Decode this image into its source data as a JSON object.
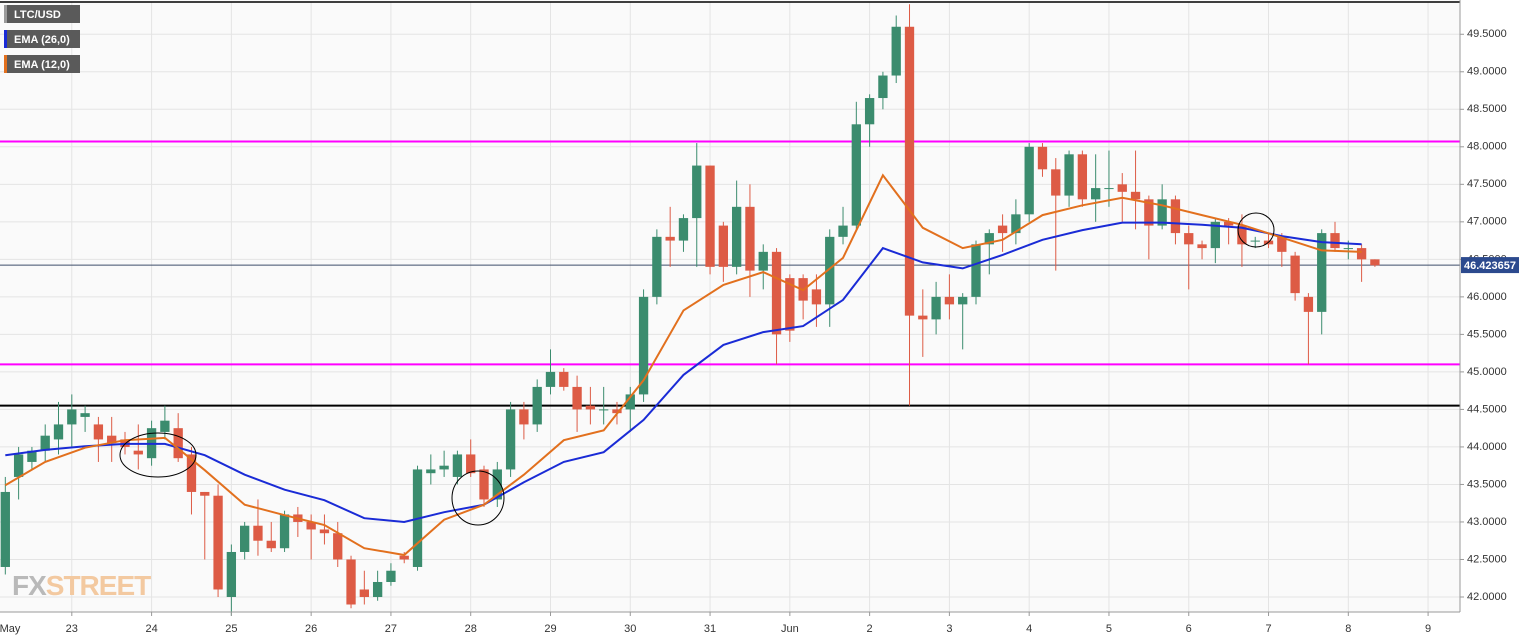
{
  "chart_data": {
    "type": "candlestick",
    "title": "LTC/USD",
    "x": [
      1,
      2,
      3,
      4,
      5,
      6,
      7,
      8,
      9,
      10,
      11,
      12,
      13,
      14,
      15,
      16,
      17,
      18,
      19,
      20,
      21,
      22,
      23,
      24,
      25,
      26,
      27,
      28,
      29,
      30,
      31,
      32,
      33,
      34,
      35,
      36,
      37,
      38,
      39,
      40,
      41,
      42,
      43,
      44,
      45,
      46,
      47,
      48,
      49,
      50,
      51,
      52,
      53,
      54,
      55,
      56,
      57,
      58,
      59,
      60,
      61,
      62,
      63,
      64,
      65,
      66,
      67,
      68,
      69,
      70,
      71,
      72,
      73,
      74,
      75,
      76,
      77,
      78,
      79,
      80,
      81,
      82,
      83,
      84,
      85,
      86,
      87,
      88,
      89,
      90,
      91,
      92,
      93,
      94,
      95,
      96,
      97,
      98,
      99,
      100,
      101,
      102,
      103,
      104
    ],
    "open": [
      42.4,
      43.6,
      43.8,
      43.95,
      44.1,
      44.3,
      44.4,
      44.3,
      44.15,
      44.1,
      43.95,
      43.85,
      44.2,
      44.25,
      43.9,
      43.4,
      43.35,
      42.0,
      42.6,
      42.95,
      42.75,
      42.65,
      43.1,
      43.0,
      42.9,
      42.85,
      42.5,
      42.1,
      42.0,
      42.2,
      42.55,
      42.4,
      43.65,
      43.7,
      43.6,
      43.9,
      43.7,
      43.3,
      43.7,
      44.5,
      44.3,
      44.8,
      45.0,
      44.8,
      44.55,
      44.5,
      44.5,
      44.5,
      44.7,
      46.0,
      46.8,
      46.75,
      47.05,
      47.75,
      46.95,
      46.4,
      47.2,
      46.35,
      46.6,
      46.25,
      46.25,
      46.1,
      45.9,
      46.8,
      46.95,
      48.3,
      48.65,
      48.95,
      49.6,
      45.75,
      45.7,
      46.0,
      45.9,
      46.0,
      46.7,
      46.95,
      46.85,
      47.1,
      48.0,
      47.7,
      47.35,
      47.9,
      47.3,
      47.45,
      47.5,
      47.4,
      47.3,
      46.95,
      47.3,
      46.85,
      46.7,
      46.65,
      47.0,
      46.95,
      46.75,
      46.75,
      46.8,
      46.55,
      46.0,
      45.8,
      46.85,
      46.65,
      46.65,
      46.5
    ],
    "high": [
      43.6,
      44.0,
      44.0,
      44.3,
      44.6,
      44.7,
      44.55,
      44.4,
      44.4,
      44.2,
      44.3,
      44.35,
      44.55,
      44.45,
      44.0,
      43.4,
      43.5,
      42.7,
      43.0,
      43.3,
      43.0,
      43.15,
      43.2,
      43.1,
      43.1,
      43.0,
      42.55,
      42.35,
      42.35,
      42.45,
      42.6,
      43.75,
      43.9,
      43.95,
      43.95,
      44.1,
      43.75,
      43.8,
      44.6,
      44.6,
      44.9,
      45.3,
      45.05,
      44.95,
      44.8,
      44.8,
      44.6,
      44.8,
      46.1,
      46.9,
      47.2,
      47.1,
      48.05,
      47.75,
      47.0,
      47.55,
      47.5,
      46.7,
      46.65,
      46.3,
      46.3,
      46.3,
      46.9,
      47.2,
      48.6,
      48.7,
      49.0,
      49.75,
      49.9,
      46.1,
      46.2,
      46.3,
      46.05,
      46.75,
      46.9,
      47.1,
      47.3,
      48.05,
      48.05,
      47.85,
      47.95,
      47.95,
      47.9,
      47.95,
      47.65,
      47.95,
      47.35,
      47.5,
      47.35,
      46.95,
      46.75,
      47.05,
      47.05,
      47.1,
      46.8,
      46.85,
      46.85,
      46.6,
      46.05,
      46.9,
      47.0,
      46.75,
      46.7,
      46.5
    ],
    "low": [
      42.3,
      43.3,
      43.7,
      43.8,
      43.9,
      44.0,
      44.2,
      43.8,
      43.8,
      43.9,
      43.7,
      43.75,
      44.1,
      43.8,
      43.1,
      42.5,
      42.0,
      41.75,
      42.5,
      42.55,
      42.6,
      42.6,
      42.8,
      42.5,
      42.7,
      42.4,
      41.85,
      41.9,
      41.95,
      42.15,
      42.45,
      42.35,
      43.5,
      43.6,
      43.5,
      43.6,
      43.2,
      43.2,
      43.6,
      44.1,
      44.2,
      44.7,
      44.75,
      44.2,
      44.3,
      44.3,
      44.3,
      44.2,
      44.6,
      45.9,
      46.4,
      46.6,
      46.4,
      46.3,
      46.2,
      46.3,
      46.0,
      46.1,
      45.1,
      45.4,
      45.7,
      45.6,
      45.6,
      46.7,
      46.9,
      48.0,
      48.5,
      48.85,
      44.55,
      45.2,
      45.5,
      45.7,
      45.3,
      45.9,
      46.3,
      46.6,
      46.7,
      47.0,
      47.6,
      46.35,
      47.2,
      47.2,
      47.0,
      47.2,
      47.0,
      46.9,
      46.5,
      46.9,
      46.7,
      46.1,
      46.5,
      46.45,
      46.7,
      46.4,
      46.65,
      46.65,
      46.4,
      45.95,
      45.1,
      45.5,
      46.6,
      46.5,
      46.2,
      46.4
    ],
    "close": [
      43.4,
      43.9,
      43.95,
      44.15,
      44.3,
      44.5,
      44.45,
      44.1,
      44.05,
      44.0,
      43.9,
      44.25,
      44.35,
      43.85,
      43.4,
      43.35,
      42.1,
      42.6,
      42.95,
      42.75,
      42.65,
      43.1,
      43.0,
      42.9,
      42.85,
      42.5,
      41.9,
      42.0,
      42.2,
      42.35,
      42.5,
      43.7,
      43.7,
      43.75,
      43.9,
      43.65,
      43.3,
      43.7,
      44.5,
      44.3,
      44.8,
      45.0,
      44.8,
      44.5,
      44.5,
      44.5,
      44.45,
      44.7,
      46.0,
      46.8,
      46.75,
      47.05,
      47.75,
      46.4,
      46.4,
      47.2,
      46.35,
      46.6,
      45.5,
      45.55,
      45.95,
      45.9,
      46.8,
      46.95,
      48.3,
      48.65,
      48.95,
      49.6,
      45.75,
      45.7,
      46.0,
      45.9,
      46.0,
      46.7,
      46.85,
      46.85,
      47.1,
      48.0,
      47.7,
      47.35,
      47.9,
      47.3,
      47.45,
      47.45,
      47.4,
      47.3,
      46.95,
      47.3,
      46.85,
      46.7,
      46.65,
      47.0,
      46.95,
      46.7,
      46.75,
      46.7,
      46.6,
      46.05,
      45.8,
      46.85,
      46.65,
      46.65,
      46.5,
      46.42
    ],
    "up_color": "#3b8c6e",
    "down_color": "#dd5b45",
    "series": [
      {
        "name": "EMA (26,0)",
        "color": "#1a2bd6",
        "x": [
          1,
          4,
          7,
          10,
          13,
          16,
          19,
          22,
          25,
          28,
          31,
          34,
          37,
          40,
          43,
          46,
          49,
          52,
          55,
          58,
          61,
          64,
          67,
          70,
          73,
          76,
          79,
          82,
          85,
          88,
          91,
          94,
          97,
          100,
          103
        ],
        "values": [
          43.89,
          43.96,
          44.01,
          44.04,
          44.04,
          43.89,
          43.63,
          43.43,
          43.29,
          43.05,
          43.0,
          43.13,
          43.23,
          43.53,
          43.8,
          43.93,
          44.36,
          44.96,
          45.36,
          45.53,
          45.61,
          45.96,
          46.65,
          46.46,
          46.38,
          46.56,
          46.76,
          46.89,
          46.99,
          46.99,
          46.96,
          46.92,
          46.81,
          46.73,
          46.7
        ]
      },
      {
        "name": "EMA (12,0)",
        "color": "#e2701e",
        "x": [
          1,
          4,
          7,
          10,
          13,
          16,
          19,
          22,
          25,
          28,
          31,
          34,
          37,
          40,
          43,
          46,
          49,
          52,
          55,
          58,
          61,
          64,
          67,
          70,
          73,
          76,
          79,
          82,
          85,
          88,
          91,
          94,
          97,
          100,
          103
        ],
        "values": [
          43.49,
          43.8,
          43.99,
          44.09,
          44.12,
          43.69,
          43.23,
          43.09,
          42.96,
          42.65,
          42.56,
          43.03,
          43.23,
          43.63,
          44.09,
          44.22,
          44.89,
          45.82,
          46.16,
          46.33,
          46.09,
          46.52,
          47.62,
          46.92,
          46.65,
          46.76,
          47.09,
          47.22,
          47.32,
          47.22,
          47.09,
          46.96,
          46.79,
          46.62,
          46.6
        ]
      }
    ],
    "hlines": [
      {
        "value": 48.07,
        "color": "#ff00ff"
      },
      {
        "value": 45.1,
        "color": "#ff00ff"
      },
      {
        "value": 44.55,
        "color": "#000000"
      }
    ],
    "last_price": 46.423657,
    "xlim": [
      0.6,
      110.4
    ],
    "xticks": [
      {
        "value": 0,
        "label": "May"
      },
      {
        "value": 6,
        "label": "23"
      },
      {
        "value": 12,
        "label": "24"
      },
      {
        "value": 18,
        "label": "25"
      },
      {
        "value": 24,
        "label": "26"
      },
      {
        "value": 30,
        "label": "27"
      },
      {
        "value": 36,
        "label": "28"
      },
      {
        "value": 42,
        "label": "29"
      },
      {
        "value": 48,
        "label": "30"
      },
      {
        "value": 54,
        "label": "31"
      },
      {
        "value": 60,
        "label": "Jun"
      },
      {
        "value": 66,
        "label": "2"
      },
      {
        "value": 72,
        "label": "3"
      },
      {
        "value": 78,
        "label": "4"
      },
      {
        "value": 84,
        "label": "5"
      },
      {
        "value": 90,
        "label": "6"
      },
      {
        "value": 96,
        "label": "7"
      },
      {
        "value": 102,
        "label": "8"
      },
      {
        "value": 108,
        "label": "9"
      }
    ],
    "ylim": [
      41.8,
      49.93
    ],
    "yticks": [
      {
        "value": 42,
        "label": "42.0000"
      },
      {
        "value": 42.5,
        "label": "42.5000"
      },
      {
        "value": 43,
        "label": "43.0000"
      },
      {
        "value": 43.5,
        "label": "43.5000"
      },
      {
        "value": 44,
        "label": "44.0000"
      },
      {
        "value": 44.5,
        "label": "44.5000"
      },
      {
        "value": 45,
        "label": "45.0000"
      },
      {
        "value": 45.5,
        "label": "45.5000"
      },
      {
        "value": 46,
        "label": "46.0000"
      },
      {
        "value": 46.5,
        "label": "46.5000"
      },
      {
        "value": 47,
        "label": "47.0000"
      },
      {
        "value": 47.5,
        "label": "47.5000"
      },
      {
        "value": 48,
        "label": "48.0000"
      },
      {
        "value": 48.5,
        "label": "48.5000"
      },
      {
        "value": 49,
        "label": "49.0000"
      },
      {
        "value": 49.5,
        "label": "49.5000"
      }
    ],
    "grid": true,
    "watermark": [
      "FX",
      "STREET"
    ]
  }
}
